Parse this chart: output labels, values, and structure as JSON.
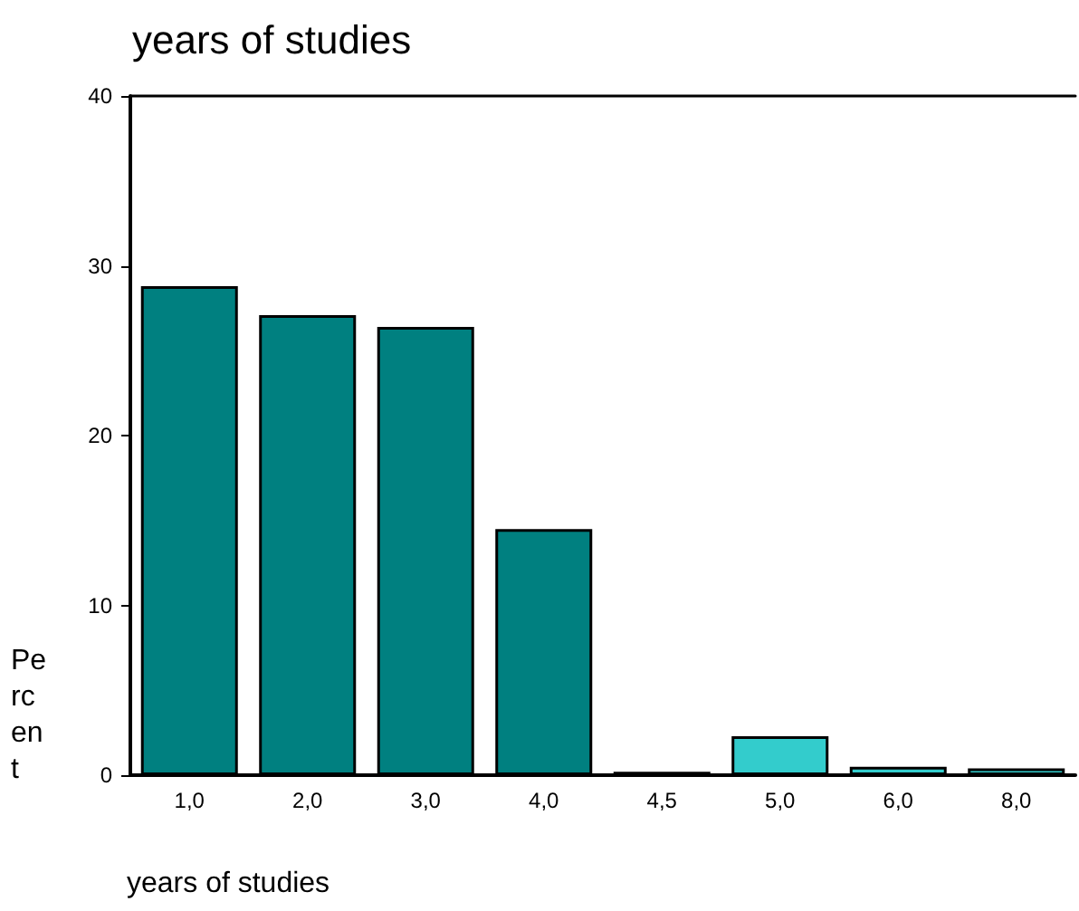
{
  "chart_data": {
    "type": "bar",
    "title": "years of studies",
    "xlabel": "years of studies",
    "ylabel": "Percent",
    "categories": [
      "1,0",
      "2,0",
      "3,0",
      "4,0",
      "4,5",
      "5,0",
      "6,0",
      "8,0"
    ],
    "values": [
      28.8,
      27.1,
      26.4,
      14.5,
      0.2,
      2.3,
      0.5,
      0.4
    ],
    "colors": [
      "#008080",
      "#008080",
      "#008080",
      "#008080",
      "#008080",
      "#33cccc",
      "#33cccc",
      "#33cccc"
    ],
    "ylim": [
      0,
      40
    ],
    "yticks": [
      0,
      10,
      20,
      30,
      40
    ],
    "grid": false
  }
}
